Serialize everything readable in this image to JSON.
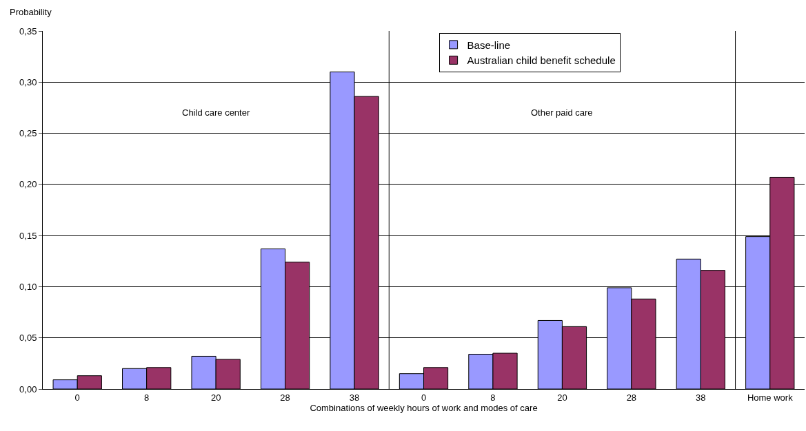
{
  "chart_data": {
    "type": "bar",
    "ylabel": "Probability",
    "xlabel": "Combinations of weekly hours of work and modes of care",
    "categories": [
      "0",
      "8",
      "20",
      "28",
      "38",
      "0",
      "8",
      "20",
      "28",
      "38",
      "Home work"
    ],
    "series": [
      {
        "name": "Base-line",
        "color": "#9999ff",
        "values": [
          0.009,
          0.02,
          0.032,
          0.137,
          0.31,
          0.015,
          0.034,
          0.067,
          0.099,
          0.127,
          0.149
        ]
      },
      {
        "name": "Australian child benefit schedule",
        "color": "#993366",
        "values": [
          0.013,
          0.021,
          0.029,
          0.124,
          0.286,
          0.021,
          0.035,
          0.061,
          0.088,
          0.116,
          0.207
        ]
      }
    ],
    "ylim": [
      0,
      0.35
    ],
    "yticks": [
      {
        "value": 0,
        "label": "0,00"
      },
      {
        "value": 0.05,
        "label": "0,05"
      },
      {
        "value": 0.1,
        "label": "0,10"
      },
      {
        "value": 0.15,
        "label": "0,15"
      },
      {
        "value": 0.2,
        "label": "0,20"
      },
      {
        "value": 0.25,
        "label": "0,25"
      },
      {
        "value": 0.3,
        "label": "0,30"
      },
      {
        "value": 0.35,
        "label": "0,35"
      }
    ],
    "grid": "y",
    "legend": "top",
    "annotations": [
      "Child care center",
      "Other paid care"
    ]
  }
}
